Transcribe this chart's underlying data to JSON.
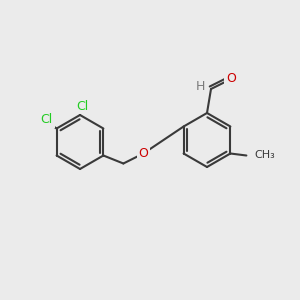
{
  "background_color": "#ebebeb",
  "bond_color": "#3a3a3a",
  "bond_width": 1.5,
  "atom_colors": {
    "C": "#3a3a3a",
    "H": "#7a7a7a",
    "O": "#cc0000",
    "Cl": "#22cc22"
  },
  "font_size": 9,
  "font_size_small": 8
}
